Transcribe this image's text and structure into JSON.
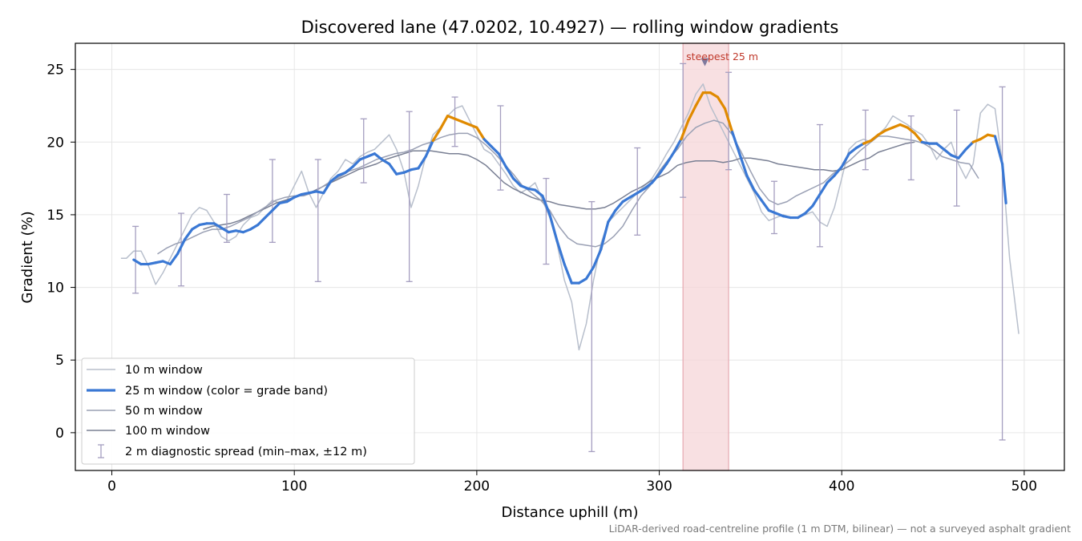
{
  "chart_data": {
    "type": "line",
    "title": "Discovered lane (47.0202, 10.4927) — rolling window gradients",
    "xlabel": "Distance uphill (m)",
    "ylabel": "Gradient (%)",
    "xlim": [
      -20,
      522
    ],
    "ylim": [
      -2.6,
      26.8
    ],
    "xticks": [
      0,
      100,
      200,
      300,
      400,
      500
    ],
    "yticks": [
      0,
      5,
      10,
      15,
      20,
      25
    ],
    "grid": true,
    "legend_position": "lower-left",
    "legend": [
      {
        "label": "10 m window",
        "style": "thin-light"
      },
      {
        "label": "25 m window (color = grade band)",
        "style": "thick-blue"
      },
      {
        "label": "50 m window",
        "style": "thin-mid"
      },
      {
        "label": "100 m window",
        "style": "thin-dark"
      },
      {
        "label": "2 m diagnostic spread (min–max, ±12 m)",
        "style": "errorbar"
      }
    ],
    "highlight": {
      "x_start": 313,
      "x_end": 338,
      "marker_x": 325,
      "marker_y": 25.5,
      "label": "steepest 25 m"
    },
    "footnote": "LiDAR-derived road-centreline profile (1 m DTM, bilinear) — not a surveyed asphalt gradient",
    "colors": {
      "w10": "#b8bfcc",
      "w25_normal": "#3a78d4",
      "w25_steep": "#e08a00",
      "w50": "#9aa0b4",
      "w100": "#7a8094",
      "errorbar": "#a59ec0",
      "highlight_fill": "#f5d5d8",
      "highlight_edge": "#e6a9b0",
      "marker": "#7f7a9e"
    },
    "series": [
      {
        "name": "10 m window",
        "x": [
          5,
          8,
          12,
          16,
          20,
          24,
          28,
          32,
          36,
          40,
          44,
          48,
          52,
          56,
          60,
          64,
          68,
          72,
          76,
          80,
          84,
          88,
          92,
          96,
          100,
          104,
          108,
          112,
          116,
          120,
          124,
          128,
          132,
          136,
          140,
          144,
          148,
          152,
          156,
          160,
          164,
          168,
          172,
          176,
          180,
          184,
          188,
          192,
          196,
          200,
          204,
          208,
          212,
          216,
          220,
          224,
          228,
          232,
          236,
          240,
          244,
          248,
          252,
          256,
          260,
          264,
          268,
          272,
          276,
          280,
          284,
          288,
          292,
          296,
          300,
          304,
          308,
          312,
          316,
          320,
          324,
          328,
          332,
          336,
          340,
          344,
          348,
          352,
          356,
          360,
          364,
          368,
          372,
          376,
          380,
          384,
          388,
          392,
          396,
          400,
          404,
          408,
          412,
          416,
          420,
          424,
          428,
          432,
          436,
          440,
          444,
          448,
          452,
          456,
          460,
          464,
          468,
          472,
          476,
          480,
          484,
          488,
          492,
          497
        ],
        "values": [
          12.0,
          12.0,
          12.5,
          12.5,
          11.5,
          10.2,
          11.0,
          12.0,
          13.0,
          14.0,
          15.0,
          15.5,
          15.3,
          14.5,
          13.5,
          13.2,
          13.5,
          14.3,
          14.8,
          15.0,
          15.5,
          16.0,
          15.8,
          16.0,
          17.0,
          18.0,
          16.5,
          15.5,
          16.5,
          17.5,
          18.0,
          18.8,
          18.5,
          19.0,
          19.3,
          19.5,
          20.0,
          20.5,
          19.5,
          18.0,
          15.5,
          17.0,
          19.0,
          20.5,
          21.0,
          21.8,
          22.3,
          22.5,
          21.5,
          20.5,
          19.5,
          19.2,
          18.5,
          17.8,
          17.0,
          16.5,
          16.8,
          17.2,
          16.0,
          14.8,
          13.0,
          10.5,
          9.0,
          5.7,
          7.5,
          10.5,
          13.0,
          14.5,
          15.0,
          15.5,
          16.0,
          16.5,
          17.0,
          17.5,
          18.3,
          19.2,
          20.0,
          21.0,
          22.0,
          23.3,
          24.0,
          22.5,
          21.5,
          20.5,
          19.5,
          18.5,
          17.5,
          16.5,
          15.2,
          14.6,
          14.8,
          15.0,
          14.8,
          14.8,
          15.0,
          15.2,
          14.5,
          14.2,
          15.5,
          17.5,
          19.5,
          20.0,
          20.2,
          20.0,
          20.5,
          21.0,
          21.8,
          21.5,
          21.2,
          20.8,
          20.5,
          19.8,
          18.8,
          19.5,
          20.0,
          18.5,
          17.5,
          18.5,
          22.0,
          22.6,
          22.3,
          18.5,
          12.0,
          6.8
        ]
      },
      {
        "name": "25 m window (color = grade band)",
        "x": [
          12,
          16,
          20,
          24,
          28,
          32,
          36,
          40,
          44,
          48,
          52,
          56,
          60,
          64,
          68,
          72,
          76,
          80,
          84,
          88,
          92,
          96,
          100,
          104,
          108,
          112,
          116,
          120,
          124,
          128,
          132,
          136,
          140,
          144,
          148,
          152,
          156,
          160,
          164,
          168,
          172,
          176,
          180,
          184,
          188,
          192,
          196,
          200,
          204,
          208,
          212,
          216,
          220,
          224,
          228,
          232,
          236,
          240,
          244,
          248,
          252,
          256,
          260,
          264,
          268,
          272,
          276,
          280,
          284,
          288,
          292,
          296,
          300,
          304,
          308,
          312,
          316,
          320,
          324,
          328,
          332,
          336,
          340,
          344,
          348,
          352,
          356,
          360,
          364,
          368,
          372,
          376,
          380,
          384,
          388,
          392,
          396,
          400,
          404,
          408,
          412,
          416,
          420,
          424,
          428,
          432,
          436,
          440,
          444,
          448,
          452,
          456,
          460,
          464,
          468,
          472,
          476,
          480,
          484,
          488,
          490
        ],
        "values": [
          11.9,
          11.6,
          11.6,
          11.7,
          11.8,
          11.6,
          12.3,
          13.3,
          14.0,
          14.3,
          14.4,
          14.4,
          14.1,
          13.8,
          13.9,
          13.8,
          14.0,
          14.3,
          14.8,
          15.3,
          15.8,
          15.9,
          16.2,
          16.4,
          16.5,
          16.6,
          16.5,
          17.3,
          17.7,
          17.9,
          18.3,
          18.8,
          19.0,
          19.2,
          18.8,
          18.5,
          17.8,
          17.9,
          18.1,
          18.2,
          19.0,
          20.1,
          20.9,
          21.8,
          21.6,
          21.4,
          21.2,
          21.0,
          20.2,
          19.7,
          19.2,
          18.3,
          17.5,
          17.0,
          16.8,
          16.7,
          16.3,
          15.0,
          13.2,
          11.6,
          10.3,
          10.3,
          10.6,
          11.4,
          12.6,
          14.5,
          15.3,
          15.9,
          16.2,
          16.5,
          16.8,
          17.2,
          17.8,
          18.5,
          19.3,
          20.2,
          21.5,
          22.5,
          23.4,
          23.4,
          23.1,
          22.3,
          20.7,
          19.2,
          17.7,
          16.7,
          16.0,
          15.3,
          15.1,
          14.9,
          14.8,
          14.8,
          15.1,
          15.6,
          16.4,
          17.2,
          17.7,
          18.3,
          19.2,
          19.6,
          19.9,
          20.1,
          20.5,
          20.8,
          21.0,
          21.2,
          21.0,
          20.6,
          20.0,
          19.9,
          19.9,
          19.5,
          19.1,
          18.9,
          19.5,
          20.0,
          20.2,
          20.5,
          20.4,
          18.5,
          15.8
        ]
      },
      {
        "name": "50 m window",
        "x": [
          25,
          30,
          35,
          40,
          45,
          50,
          55,
          60,
          65,
          70,
          75,
          80,
          85,
          90,
          95,
          100,
          105,
          110,
          115,
          120,
          125,
          130,
          135,
          140,
          145,
          150,
          155,
          160,
          165,
          170,
          175,
          180,
          185,
          190,
          195,
          200,
          205,
          210,
          215,
          220,
          225,
          230,
          235,
          240,
          245,
          250,
          255,
          260,
          265,
          270,
          275,
          280,
          285,
          290,
          295,
          300,
          305,
          310,
          315,
          320,
          325,
          330,
          335,
          340,
          345,
          350,
          355,
          360,
          365,
          370,
          375,
          380,
          385,
          390,
          395,
          400,
          405,
          410,
          415,
          420,
          425,
          430,
          435,
          440,
          445,
          450,
          455,
          460,
          465,
          470,
          475
        ],
        "values": [
          12.3,
          12.7,
          13.0,
          13.2,
          13.5,
          13.8,
          14.0,
          14.0,
          14.2,
          14.5,
          14.8,
          15.2,
          15.6,
          16.0,
          16.2,
          16.3,
          16.3,
          16.5,
          16.9,
          17.3,
          17.6,
          18.0,
          18.2,
          18.5,
          18.8,
          19.0,
          19.2,
          19.3,
          19.5,
          19.8,
          20.0,
          20.3,
          20.5,
          20.6,
          20.6,
          20.3,
          19.8,
          19.2,
          18.5,
          17.8,
          17.0,
          16.5,
          16.0,
          15.3,
          14.2,
          13.4,
          13.0,
          12.9,
          12.8,
          13.0,
          13.5,
          14.2,
          15.3,
          16.3,
          17.0,
          18.0,
          18.8,
          19.5,
          20.4,
          21.0,
          21.3,
          21.5,
          21.3,
          20.5,
          19.3,
          18.0,
          16.8,
          16.0,
          15.7,
          15.9,
          16.3,
          16.6,
          16.9,
          17.2,
          17.8,
          18.3,
          18.8,
          19.4,
          19.9,
          20.4,
          20.4,
          20.3,
          20.2,
          20.1,
          19.9,
          19.5,
          19.0,
          18.8,
          18.6,
          18.5,
          17.5
        ]
      },
      {
        "name": "100 m window",
        "x": [
          50,
          55,
          60,
          65,
          70,
          75,
          80,
          85,
          90,
          95,
          100,
          105,
          110,
          115,
          120,
          125,
          130,
          135,
          140,
          145,
          150,
          155,
          160,
          165,
          170,
          175,
          180,
          185,
          190,
          195,
          200,
          205,
          210,
          215,
          220,
          225,
          230,
          235,
          240,
          245,
          250,
          255,
          260,
          265,
          270,
          275,
          280,
          285,
          290,
          295,
          300,
          305,
          310,
          315,
          320,
          325,
          330,
          335,
          340,
          345,
          350,
          355,
          360,
          365,
          370,
          375,
          380,
          385,
          390,
          395,
          400,
          405,
          410,
          415,
          420,
          425,
          430,
          435,
          440
        ],
        "values": [
          14.0,
          14.2,
          14.3,
          14.4,
          14.6,
          14.9,
          15.2,
          15.5,
          15.8,
          16.0,
          16.2,
          16.4,
          16.6,
          16.9,
          17.2,
          17.5,
          17.8,
          18.1,
          18.3,
          18.5,
          18.8,
          19.0,
          19.2,
          19.4,
          19.4,
          19.4,
          19.3,
          19.2,
          19.2,
          19.1,
          18.8,
          18.4,
          17.8,
          17.2,
          16.8,
          16.5,
          16.2,
          16.0,
          15.9,
          15.7,
          15.6,
          15.5,
          15.4,
          15.4,
          15.5,
          15.8,
          16.2,
          16.6,
          16.9,
          17.3,
          17.6,
          17.9,
          18.4,
          18.6,
          18.7,
          18.7,
          18.7,
          18.6,
          18.7,
          18.9,
          18.9,
          18.8,
          18.7,
          18.5,
          18.4,
          18.3,
          18.2,
          18.1,
          18.1,
          18.0,
          18.1,
          18.4,
          18.7,
          18.9,
          19.3,
          19.5,
          19.7,
          19.9,
          20.0
        ]
      }
    ],
    "error_bars": [
      {
        "x": 13,
        "low": 9.6,
        "high": 14.2
      },
      {
        "x": 38,
        "low": 10.1,
        "high": 15.1
      },
      {
        "x": 63,
        "low": 13.1,
        "high": 16.4
      },
      {
        "x": 88,
        "low": 13.1,
        "high": 18.8
      },
      {
        "x": 113,
        "low": 10.4,
        "high": 18.8
      },
      {
        "x": 138,
        "low": 17.2,
        "high": 21.6
      },
      {
        "x": 163,
        "low": 10.4,
        "high": 22.1
      },
      {
        "x": 188,
        "low": 19.7,
        "high": 23.1
      },
      {
        "x": 213,
        "low": 16.7,
        "high": 22.5
      },
      {
        "x": 238,
        "low": 11.6,
        "high": 17.5
      },
      {
        "x": 263,
        "low": -1.3,
        "high": 15.9
      },
      {
        "x": 288,
        "low": 13.6,
        "high": 19.6
      },
      {
        "x": 313,
        "low": 16.2,
        "high": 25.4
      },
      {
        "x": 338,
        "low": 18.1,
        "high": 24.8
      },
      {
        "x": 363,
        "low": 13.7,
        "high": 17.3
      },
      {
        "x": 388,
        "low": 12.8,
        "high": 21.2
      },
      {
        "x": 413,
        "low": 18.1,
        "high": 22.2
      },
      {
        "x": 438,
        "low": 17.4,
        "high": 21.8
      },
      {
        "x": 463,
        "low": 15.6,
        "high": 22.2
      },
      {
        "x": 488,
        "low": -0.5,
        "high": 23.8
      }
    ]
  }
}
